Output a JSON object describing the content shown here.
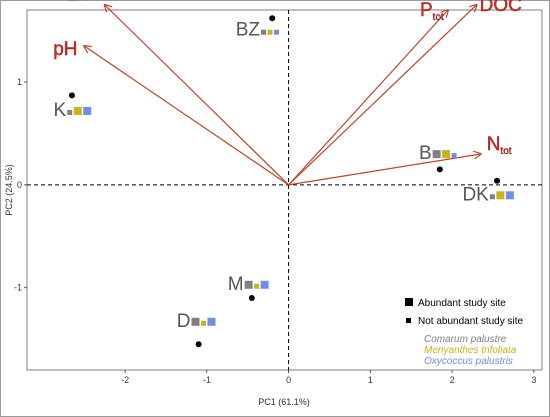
{
  "chart_data": {
    "type": "scatter",
    "title": "",
    "xlabel": "PC1 (61.1%)",
    "ylabel": "PC2 (24.5%)",
    "xlim": [
      -3.2,
      3.1
    ],
    "ylim": [
      -1.8,
      1.7
    ],
    "xticks": [
      -2,
      -1,
      0,
      1,
      2,
      3
    ],
    "yticks": [
      -1,
      0,
      1
    ],
    "grid": true,
    "legend_position": "bottom-right",
    "vectors": [
      {
        "name": "EC",
        "sub": "",
        "x": -2.25,
        "y": 1.75
      },
      {
        "name": "pH",
        "sub": "",
        "x": -2.5,
        "y": 1.35
      },
      {
        "name": "P",
        "sub": "tot",
        "x": 1.95,
        "y": 1.7
      },
      {
        "name": "DOC",
        "sub": "",
        "x": 2.3,
        "y": 1.75
      },
      {
        "name": "N",
        "sub": "tot",
        "x": 2.35,
        "y": 0.3
      }
    ],
    "sites": [
      {
        "name": "BZ",
        "x": -0.2,
        "y": 1.62,
        "label_x": -0.35,
        "label_y": 1.45,
        "species": [
          "comarum",
          "menyanthes",
          "oxycoccus"
        ],
        "abundant": []
      },
      {
        "name": "K",
        "x": -2.65,
        "y": 0.87,
        "label_x": -2.72,
        "label_y": 0.67,
        "species": [
          "comarum",
          "menyanthes",
          "oxycoccus"
        ],
        "abundant": [
          "menyanthes",
          "oxycoccus"
        ]
      },
      {
        "name": "B",
        "x": 1.85,
        "y": 0.15,
        "label_x": 1.75,
        "label_y": 0.25,
        "species": [
          "comarum",
          "menyanthes",
          "oxycoccus"
        ],
        "abundant": [
          "comarum",
          "menyanthes"
        ]
      },
      {
        "name": "DK",
        "x": 2.55,
        "y": 0.04,
        "label_x": 2.45,
        "label_y": -0.15,
        "species": [
          "comarum",
          "menyanthes",
          "oxycoccus"
        ],
        "abundant": [
          "menyanthes",
          "oxycoccus"
        ]
      },
      {
        "name": "M",
        "x": -0.45,
        "y": -1.1,
        "label_x": -0.55,
        "label_y": -1.02,
        "species": [
          "comarum",
          "menyanthes",
          "oxycoccus"
        ],
        "abundant": [
          "comarum",
          "oxycoccus"
        ]
      },
      {
        "name": "D",
        "x": -1.1,
        "y": -1.55,
        "label_x": -1.2,
        "label_y": -1.38,
        "species": [
          "comarum",
          "menyanthes",
          "oxycoccus"
        ],
        "abundant": [
          "comarum",
          "oxycoccus"
        ]
      }
    ],
    "legend": {
      "abundant": "Abundant study site",
      "not_abundant": "Not abundant study site",
      "species": [
        {
          "key": "comarum",
          "label": "Comarum palustre",
          "color": "#808080"
        },
        {
          "key": "menyanthes",
          "label": "Menyanthes trifoliata",
          "color": "#c9b21a"
        },
        {
          "key": "oxycoccus",
          "label": "Oxycoccus palustris",
          "color": "#6f8fe0"
        }
      ]
    },
    "colors": {
      "vector": "#b8472c",
      "vector_label": "#e02020",
      "site_label": "#555555"
    }
  }
}
